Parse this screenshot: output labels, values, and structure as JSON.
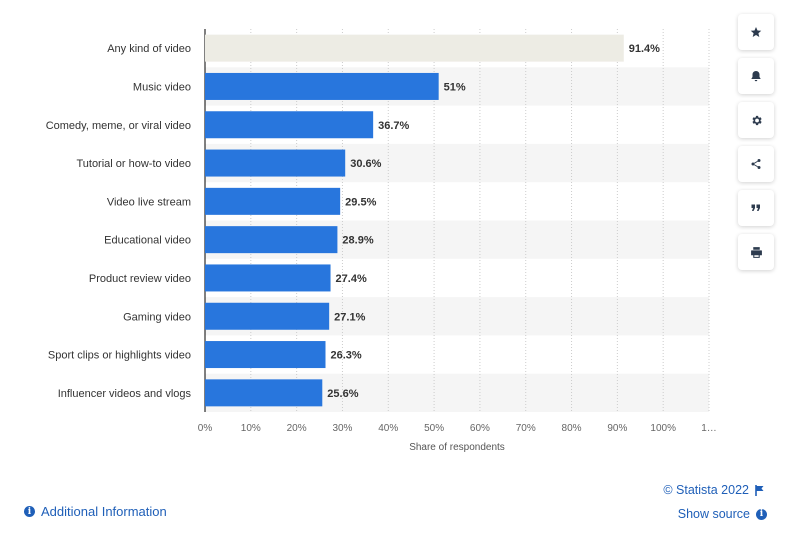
{
  "chart_data": {
    "type": "bar",
    "orientation": "horizontal",
    "categories": [
      "Any kind of video",
      "Music video",
      "Comedy, meme, or viral video",
      "Tutorial or how-to video",
      "Video live stream",
      "Educational video",
      "Product review video",
      "Gaming video",
      "Sport clips or highlights video",
      "Influencer videos and vlogs"
    ],
    "values": [
      91.4,
      51,
      36.7,
      30.6,
      29.5,
      28.9,
      27.4,
      27.1,
      26.3,
      25.6
    ],
    "value_labels": [
      "91.4%",
      "51%",
      "36.7%",
      "30.6%",
      "29.5%",
      "28.9%",
      "27.4%",
      "27.1%",
      "26.3%",
      "25.6%"
    ],
    "highlight_index": 0,
    "xlabel": "Share of respondents",
    "xlim": [
      0,
      110
    ],
    "x_ticks": [
      "0%",
      "10%",
      "20%",
      "30%",
      "40%",
      "50%",
      "60%",
      "70%",
      "80%",
      "90%",
      "100%",
      "1…"
    ],
    "grid": true,
    "colors": {
      "bar": "#2876dd",
      "highlight_bar": "#edece4",
      "row_band": "#f5f5f5",
      "grid": "#cccccc",
      "label_text": "#333333",
      "value_text": "#333333",
      "axis_line": "#000000"
    }
  },
  "toolbar": {
    "icons": [
      "star-icon",
      "bell-icon",
      "gear-icon",
      "share-icon",
      "quote-icon",
      "print-icon"
    ]
  },
  "footer": {
    "additional_info": "Additional Information",
    "copyright": "© Statista 2022",
    "show_source": "Show source"
  },
  "colors": {
    "link": "#1f5fb8",
    "icon": "#2d3b4e"
  }
}
